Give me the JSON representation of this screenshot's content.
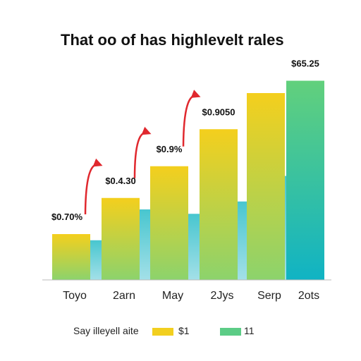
{
  "chart_data": {
    "type": "bar",
    "title": "That oo of has highlevelt rales",
    "categories": [
      "Toyo",
      "2arn",
      "May",
      "2Jys",
      "Serp",
      "2ots"
    ],
    "series": [
      {
        "name": "$1",
        "values": [
          52,
          93,
          129,
          171,
          212,
          226
        ],
        "color": "#f2cf1f",
        "color_bottom": "#8fd36a"
      },
      {
        "name": "11",
        "values": [
          45,
          80,
          75,
          89,
          118,
          226
        ],
        "color": "#4cc8d1",
        "color_bottom": "#9fdfe6"
      }
    ],
    "data_labels": [
      "$0.70%",
      "$0.4.30",
      "$0.9%",
      "$0.9050",
      "",
      "$65.25"
    ],
    "legend": {
      "label": "Say illeyell aite",
      "placement": "bottom"
    },
    "ylim": [
      0,
      240
    ],
    "grid": false,
    "xlabel": "",
    "ylabel": "",
    "colors": {
      "arrow": "#e0282e",
      "axis": "#bbbbbb"
    }
  }
}
